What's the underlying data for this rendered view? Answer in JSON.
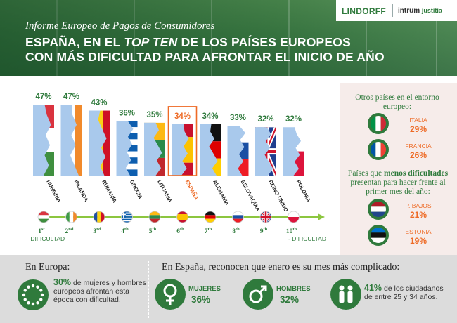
{
  "header": {
    "subtitle": "Informe Europeo de Pagos de Consumidores",
    "title_line1_a": "ESPAÑA, EN EL ",
    "title_line1_b": "TOP TEN",
    "title_line1_c": " DE LOS PAÍSES EUROPEOS",
    "title_line2": "CON MÁS DIFICULTAD PARA AFRONTAR EL INICIO DE AÑO",
    "logo_left": "LINDORFF",
    "logo_right_a": "intrum",
    "logo_right_b": "justitia"
  },
  "chart_data": {
    "type": "bar",
    "categories": [
      "HUNGRÍA",
      "IRLANDA",
      "RUMANÍA",
      "GRECIA",
      "LITUANIA",
      "ESPAÑA",
      "ALEMANIA",
      "ESLOVAQUIA",
      "REINO UNIDO",
      "POLONIA"
    ],
    "values": [
      47,
      47,
      43,
      36,
      35,
      34,
      34,
      33,
      32,
      32
    ],
    "value_labels": [
      "47%",
      "47%",
      "43%",
      "36%",
      "35%",
      "34%",
      "34%",
      "33%",
      "32%",
      "32%"
    ],
    "highlight": "ESPAÑA",
    "highlight_color": "#ee6a25",
    "value_color": "#2f7a3c",
    "ranks": [
      {
        "n": "1",
        "sup": "st"
      },
      {
        "n": "2",
        "sup": "nd"
      },
      {
        "n": "3",
        "sup": "rd"
      },
      {
        "n": "4",
        "sup": "th"
      },
      {
        "n": "5",
        "sup": "th"
      },
      {
        "n": "6",
        "sup": "th"
      },
      {
        "n": "7",
        "sup": "th"
      },
      {
        "n": "8",
        "sup": "th"
      },
      {
        "n": "9",
        "sup": "th"
      },
      {
        "n": "10",
        "sup": "th"
      }
    ],
    "more_label": "+ DIFICULTAD",
    "less_label": "- DIFICULTAD"
  },
  "side": {
    "others_title": "Otros países en el entorno europeo:",
    "others": [
      {
        "name": "ITALIA",
        "value": "29%"
      },
      {
        "name": "FRANCIA",
        "value": "26%"
      }
    ],
    "less_title_a": "Países que ",
    "less_title_b": "menos dificultades",
    "less_title_c": " presentan para hacer frente al primer mes del año:",
    "less": [
      {
        "name": "P. BAJOS",
        "value": "21%"
      },
      {
        "name": "ESTONIA",
        "value": "19%"
      }
    ]
  },
  "bottom": {
    "europe_title": "En Europa:",
    "europe_pct": "30%",
    "europe_text": "de mujeres y hombres europeos afrontan esta época con dificultad.",
    "spain_title": "En España, reconocen que enero es su mes más complicado:",
    "women_label": "MUJERES",
    "women_value": "36%",
    "men_label": "HOMBRES",
    "men_value": "32%",
    "age_pct": "41%",
    "age_text": "de los ciudadanos de entre 25 y 34 años."
  },
  "colors": {
    "brand_green": "#2f7a3c",
    "accent_orange": "#ee6a25",
    "sky_blue": "#a9c9ec"
  }
}
